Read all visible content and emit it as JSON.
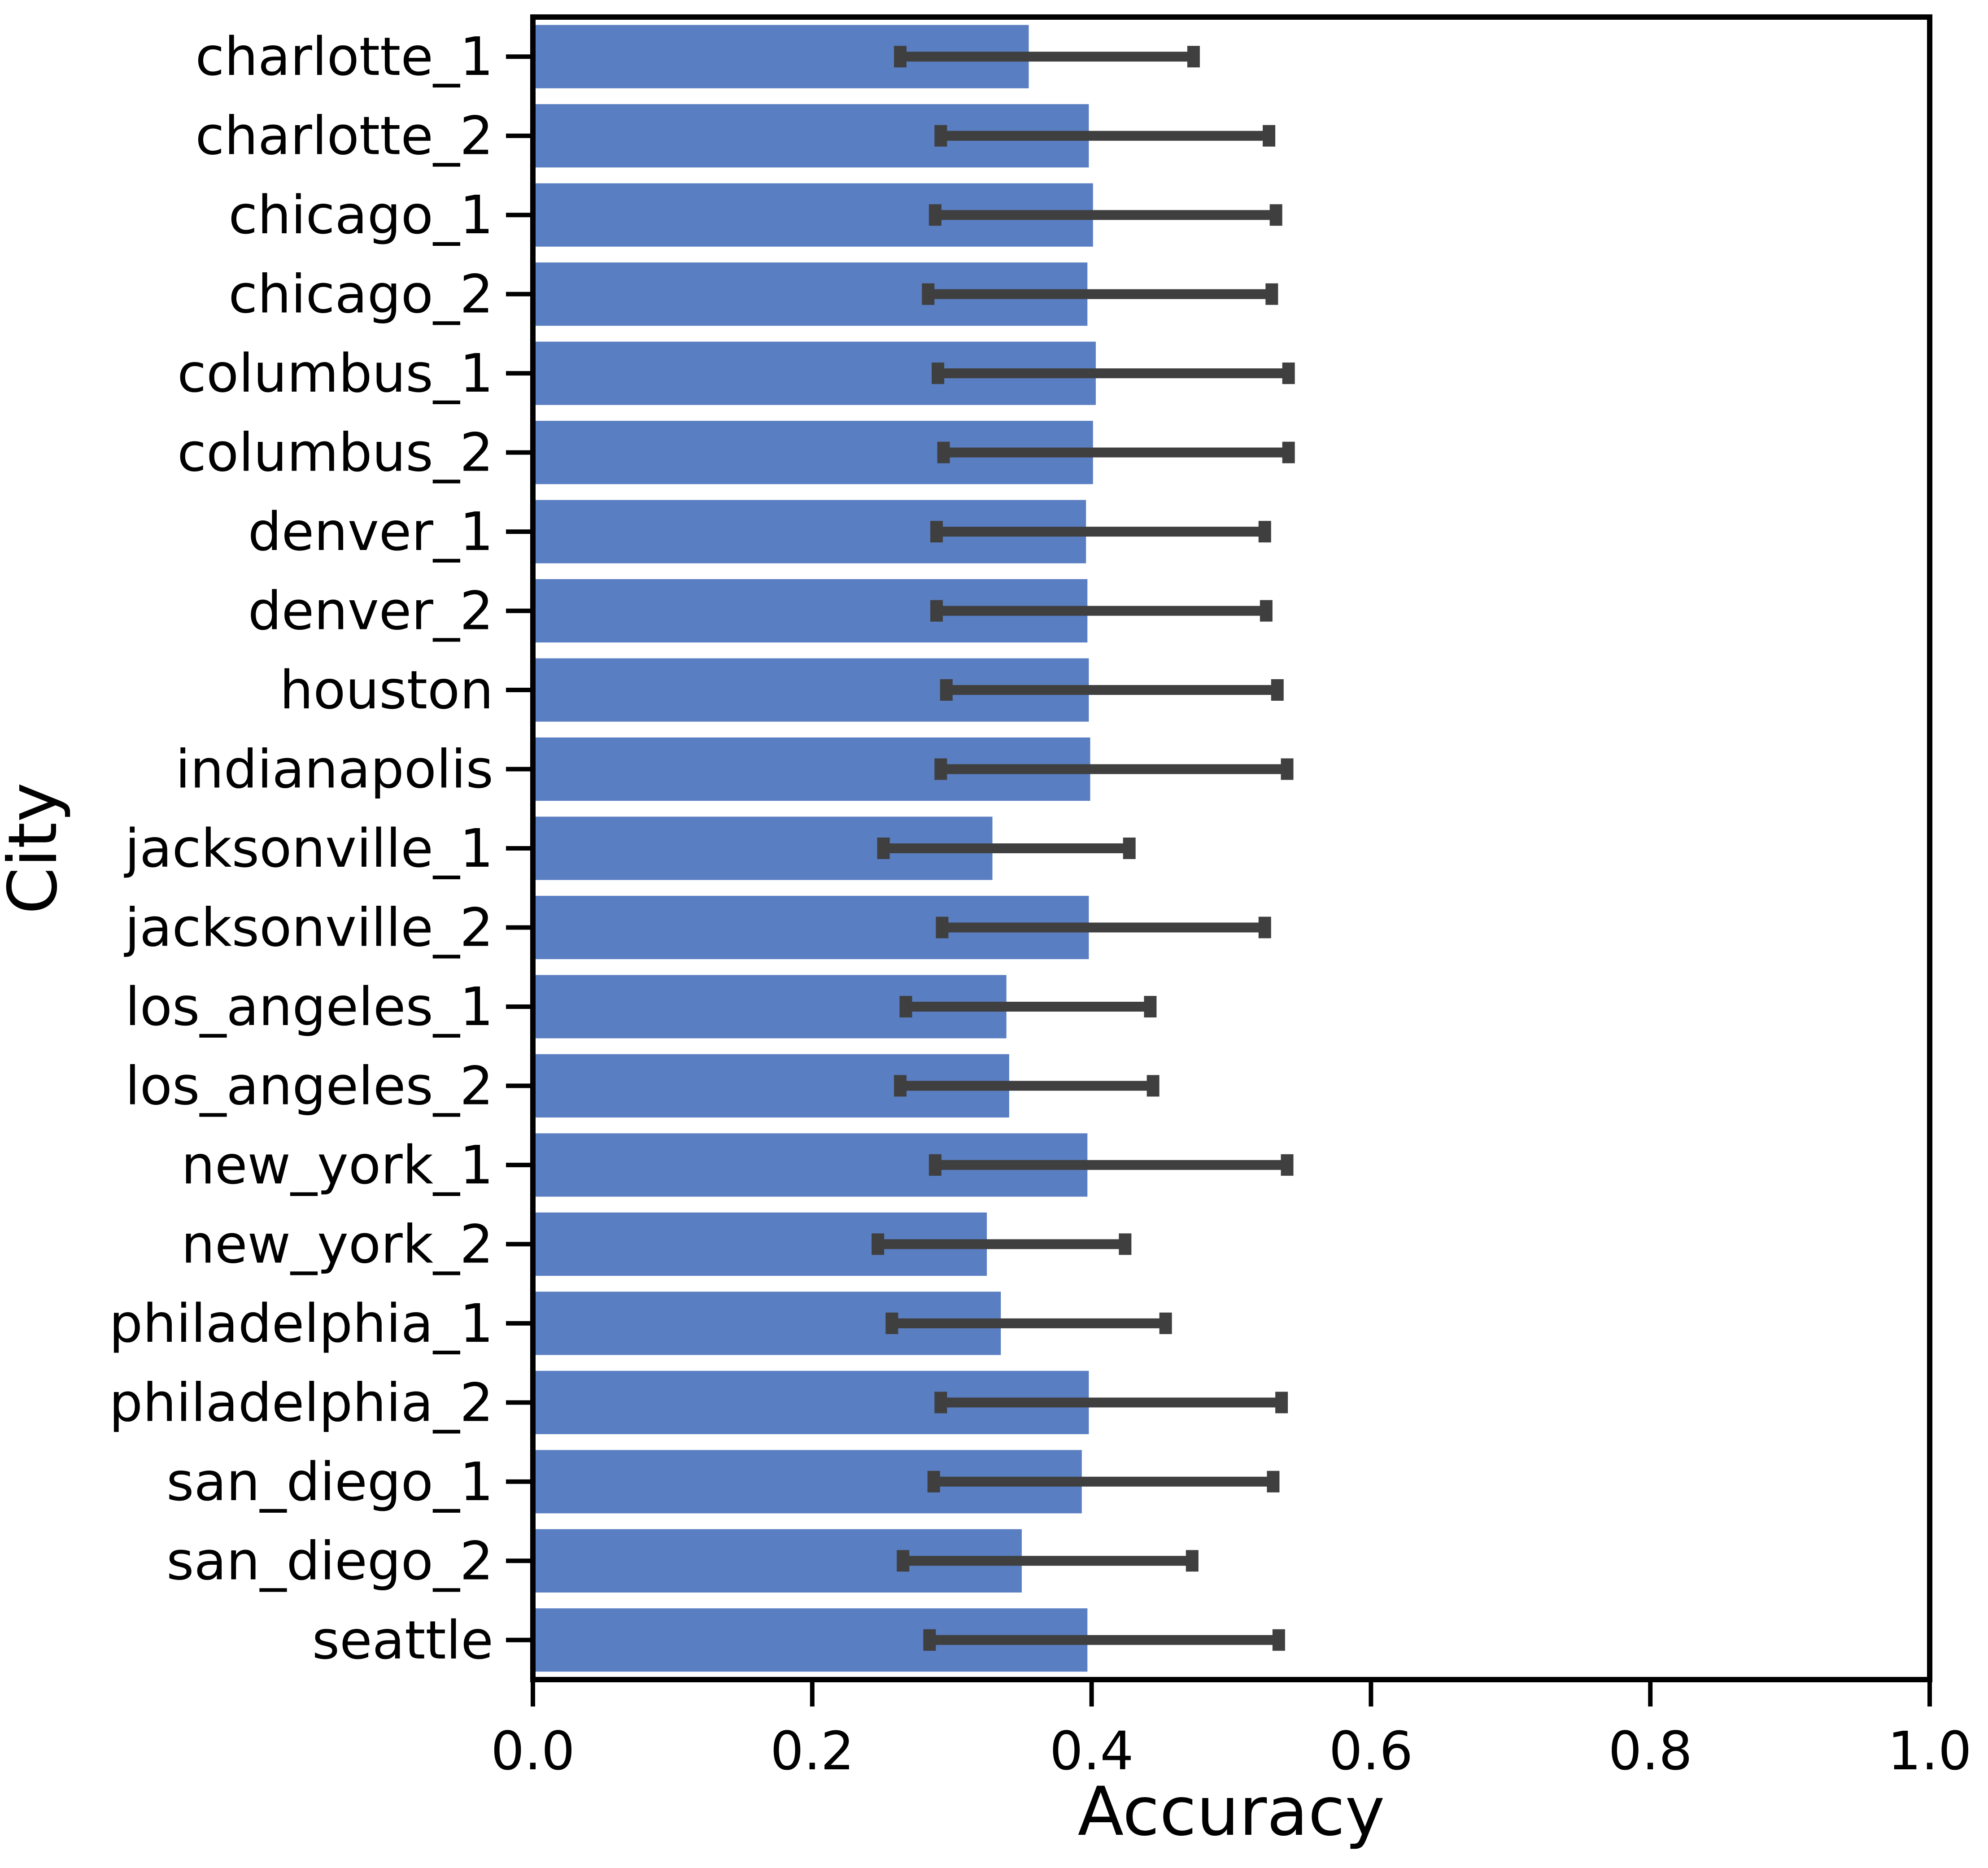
{
  "chart_data": {
    "type": "bar",
    "orientation": "horizontal",
    "title": "",
    "xlabel": "Accuracy",
    "ylabel": "City",
    "xlim": [
      0.0,
      1.0
    ],
    "xticks": [
      "0.0",
      "0.2",
      "0.4",
      "0.6",
      "0.8",
      "1.0"
    ],
    "grid": false,
    "legend": "none",
    "bar_color": "#5a7ec2",
    "error_bar_color": "#3f3f3f",
    "categories": [
      "charlotte_1",
      "charlotte_2",
      "chicago_1",
      "chicago_2",
      "columbus_1",
      "columbus_2",
      "denver_1",
      "denver_2",
      "houston",
      "indianapolis",
      "jacksonville_1",
      "jacksonville_2",
      "los_angeles_1",
      "los_angeles_2",
      "new_york_1",
      "new_york_2",
      "philadelphia_1",
      "philadelphia_2",
      "san_diego_1",
      "san_diego_2",
      "seattle"
    ],
    "values": [
      0.355,
      0.398,
      0.401,
      0.397,
      0.403,
      0.401,
      0.396,
      0.397,
      0.398,
      0.399,
      0.329,
      0.398,
      0.339,
      0.341,
      0.397,
      0.325,
      0.335,
      0.398,
      0.393,
      0.35,
      0.397
    ],
    "error_low": [
      0.263,
      0.292,
      0.288,
      0.283,
      0.29,
      0.294,
      0.289,
      0.289,
      0.296,
      0.292,
      0.251,
      0.293,
      0.267,
      0.263,
      0.288,
      0.247,
      0.257,
      0.292,
      0.287,
      0.265,
      0.284
    ],
    "error_high": [
      0.473,
      0.527,
      0.532,
      0.529,
      0.541,
      0.541,
      0.524,
      0.525,
      0.533,
      0.54,
      0.427,
      0.524,
      0.442,
      0.444,
      0.54,
      0.424,
      0.453,
      0.536,
      0.53,
      0.472,
      0.534
    ]
  }
}
